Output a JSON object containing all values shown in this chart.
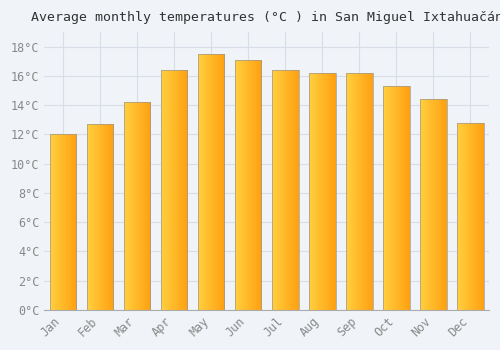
{
  "title": "Average monthly temperatures (°C ) in San Miguel Ixtahuačán",
  "months": [
    "Jan",
    "Feb",
    "Mar",
    "Apr",
    "May",
    "Jun",
    "Jul",
    "Aug",
    "Sep",
    "Oct",
    "Nov",
    "Dec"
  ],
  "values": [
    12.0,
    12.7,
    14.2,
    16.4,
    17.5,
    17.1,
    16.4,
    16.2,
    16.2,
    15.3,
    14.4,
    12.8
  ],
  "bar_color_left": "#FFD040",
  "bar_color_right": "#FFA010",
  "bar_outline_color": "#999999",
  "background_color": "#f0f4f8",
  "plot_bg_color": "#f0f4f8",
  "grid_color": "#d8dde8",
  "ytick_labels": [
    "0°C",
    "2°C",
    "4°C",
    "6°C",
    "8°C",
    "10°C",
    "12°C",
    "14°C",
    "16°C",
    "18°C"
  ],
  "ytick_values": [
    0,
    2,
    4,
    6,
    8,
    10,
    12,
    14,
    16,
    18
  ],
  "ylim": [
    0,
    19
  ],
  "title_fontsize": 9.5,
  "tick_fontsize": 8.5,
  "tick_color": "#888888",
  "font_family": "monospace"
}
